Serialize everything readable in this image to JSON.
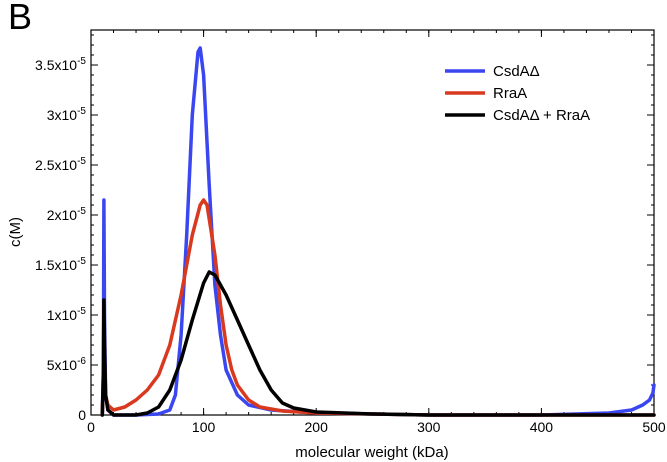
{
  "panel_label": "B",
  "chart_data": {
    "type": "line",
    "title": "",
    "xlabel": "molecular weight (kDa)",
    "ylabel": "c(M)",
    "xlim": [
      0,
      500
    ],
    "ylim": [
      0,
      3.85e-05
    ],
    "grid": false,
    "legend_position": "top-right",
    "x_ticks": [
      {
        "value": 0,
        "label": "0"
      },
      {
        "value": 100,
        "label": "100"
      },
      {
        "value": 200,
        "label": "200"
      },
      {
        "value": 300,
        "label": "300"
      },
      {
        "value": 400,
        "label": "400"
      },
      {
        "value": 500,
        "label": "500"
      }
    ],
    "y_ticks": [
      {
        "value": 0,
        "mant": "0",
        "exp": ""
      },
      {
        "value": 5e-06,
        "mant": "5x10",
        "exp": "-6"
      },
      {
        "value": 1e-05,
        "mant": "1x10",
        "exp": "-5"
      },
      {
        "value": 1.5e-05,
        "mant": "1.5x10",
        "exp": "-5"
      },
      {
        "value": 2e-05,
        "mant": "2x10",
        "exp": "-5"
      },
      {
        "value": 2.5e-05,
        "mant": "2.5x10",
        "exp": "-5"
      },
      {
        "value": 3e-05,
        "mant": "3x10",
        "exp": "-5"
      },
      {
        "value": 3.5e-05,
        "mant": "3.5x10",
        "exp": "-5"
      }
    ],
    "series": [
      {
        "name": "CsdAΔ",
        "color": "#3a47f0",
        "points": [
          [
            10,
            0
          ],
          [
            11,
            5e-06
          ],
          [
            11.5,
            2.15e-05
          ],
          [
            12,
            1e-05
          ],
          [
            13,
            2e-06
          ],
          [
            15,
            5e-07
          ],
          [
            20,
            0
          ],
          [
            40,
            0
          ],
          [
            60,
            1e-07
          ],
          [
            70,
            5e-07
          ],
          [
            75,
            2e-06
          ],
          [
            80,
            8e-06
          ],
          [
            85,
            1.8e-05
          ],
          [
            90,
            3e-05
          ],
          [
            95,
            3.63e-05
          ],
          [
            97,
            3.67e-05
          ],
          [
            100,
            3.4e-05
          ],
          [
            105,
            2.3e-05
          ],
          [
            110,
            1.3e-05
          ],
          [
            115,
            8e-06
          ],
          [
            120,
            4.5e-06
          ],
          [
            130,
            2e-06
          ],
          [
            140,
            1e-06
          ],
          [
            160,
            5e-07
          ],
          [
            200,
            2e-07
          ],
          [
            300,
            0
          ],
          [
            400,
            0
          ],
          [
            460,
            2e-07
          ],
          [
            480,
            5e-07
          ],
          [
            490,
            1e-06
          ],
          [
            496,
            1.5e-06
          ],
          [
            499,
            2.2e-06
          ],
          [
            500,
            3e-06
          ]
        ]
      },
      {
        "name": "RraA",
        "color": "#d8391f",
        "points": [
          [
            10,
            0
          ],
          [
            11,
            4e-06
          ],
          [
            11.5,
            1.1e-05
          ],
          [
            12,
            6e-06
          ],
          [
            13,
            2e-06
          ],
          [
            15,
            1e-06
          ],
          [
            20,
            5e-07
          ],
          [
            30,
            8e-07
          ],
          [
            40,
            1.5e-06
          ],
          [
            50,
            2.5e-06
          ],
          [
            60,
            4e-06
          ],
          [
            70,
            7e-06
          ],
          [
            80,
            1.2e-05
          ],
          [
            90,
            1.8e-05
          ],
          [
            97,
            2.1e-05
          ],
          [
            100,
            2.15e-05
          ],
          [
            103,
            2.1e-05
          ],
          [
            110,
            1.6e-05
          ],
          [
            115,
            1.1e-05
          ],
          [
            120,
            7e-06
          ],
          [
            125,
            4.5e-06
          ],
          [
            130,
            3e-06
          ],
          [
            140,
            1.5e-06
          ],
          [
            150,
            8e-07
          ],
          [
            170,
            4e-07
          ],
          [
            200,
            2e-07
          ],
          [
            300,
            0
          ],
          [
            500,
            0
          ]
        ]
      },
      {
        "name": "CsdAΔ + RraA",
        "color": "#000000",
        "points": [
          [
            10,
            0
          ],
          [
            11,
            4e-06
          ],
          [
            11.5,
            1.15e-05
          ],
          [
            12,
            7e-06
          ],
          [
            13,
            2e-06
          ],
          [
            15,
            5e-07
          ],
          [
            20,
            0
          ],
          [
            30,
            0
          ],
          [
            40,
            0
          ],
          [
            50,
            2e-07
          ],
          [
            60,
            8e-07
          ],
          [
            70,
            2.5e-06
          ],
          [
            80,
            5.5e-06
          ],
          [
            90,
            9.5e-06
          ],
          [
            100,
            1.32e-05
          ],
          [
            105,
            1.43e-05
          ],
          [
            110,
            1.4e-05
          ],
          [
            120,
            1.2e-05
          ],
          [
            130,
            9.5e-06
          ],
          [
            140,
            7e-06
          ],
          [
            150,
            4.5e-06
          ],
          [
            160,
            2.5e-06
          ],
          [
            170,
            1.2e-06
          ],
          [
            180,
            7e-07
          ],
          [
            200,
            3e-07
          ],
          [
            250,
            1e-07
          ],
          [
            300,
            0
          ],
          [
            500,
            0
          ]
        ]
      }
    ]
  }
}
